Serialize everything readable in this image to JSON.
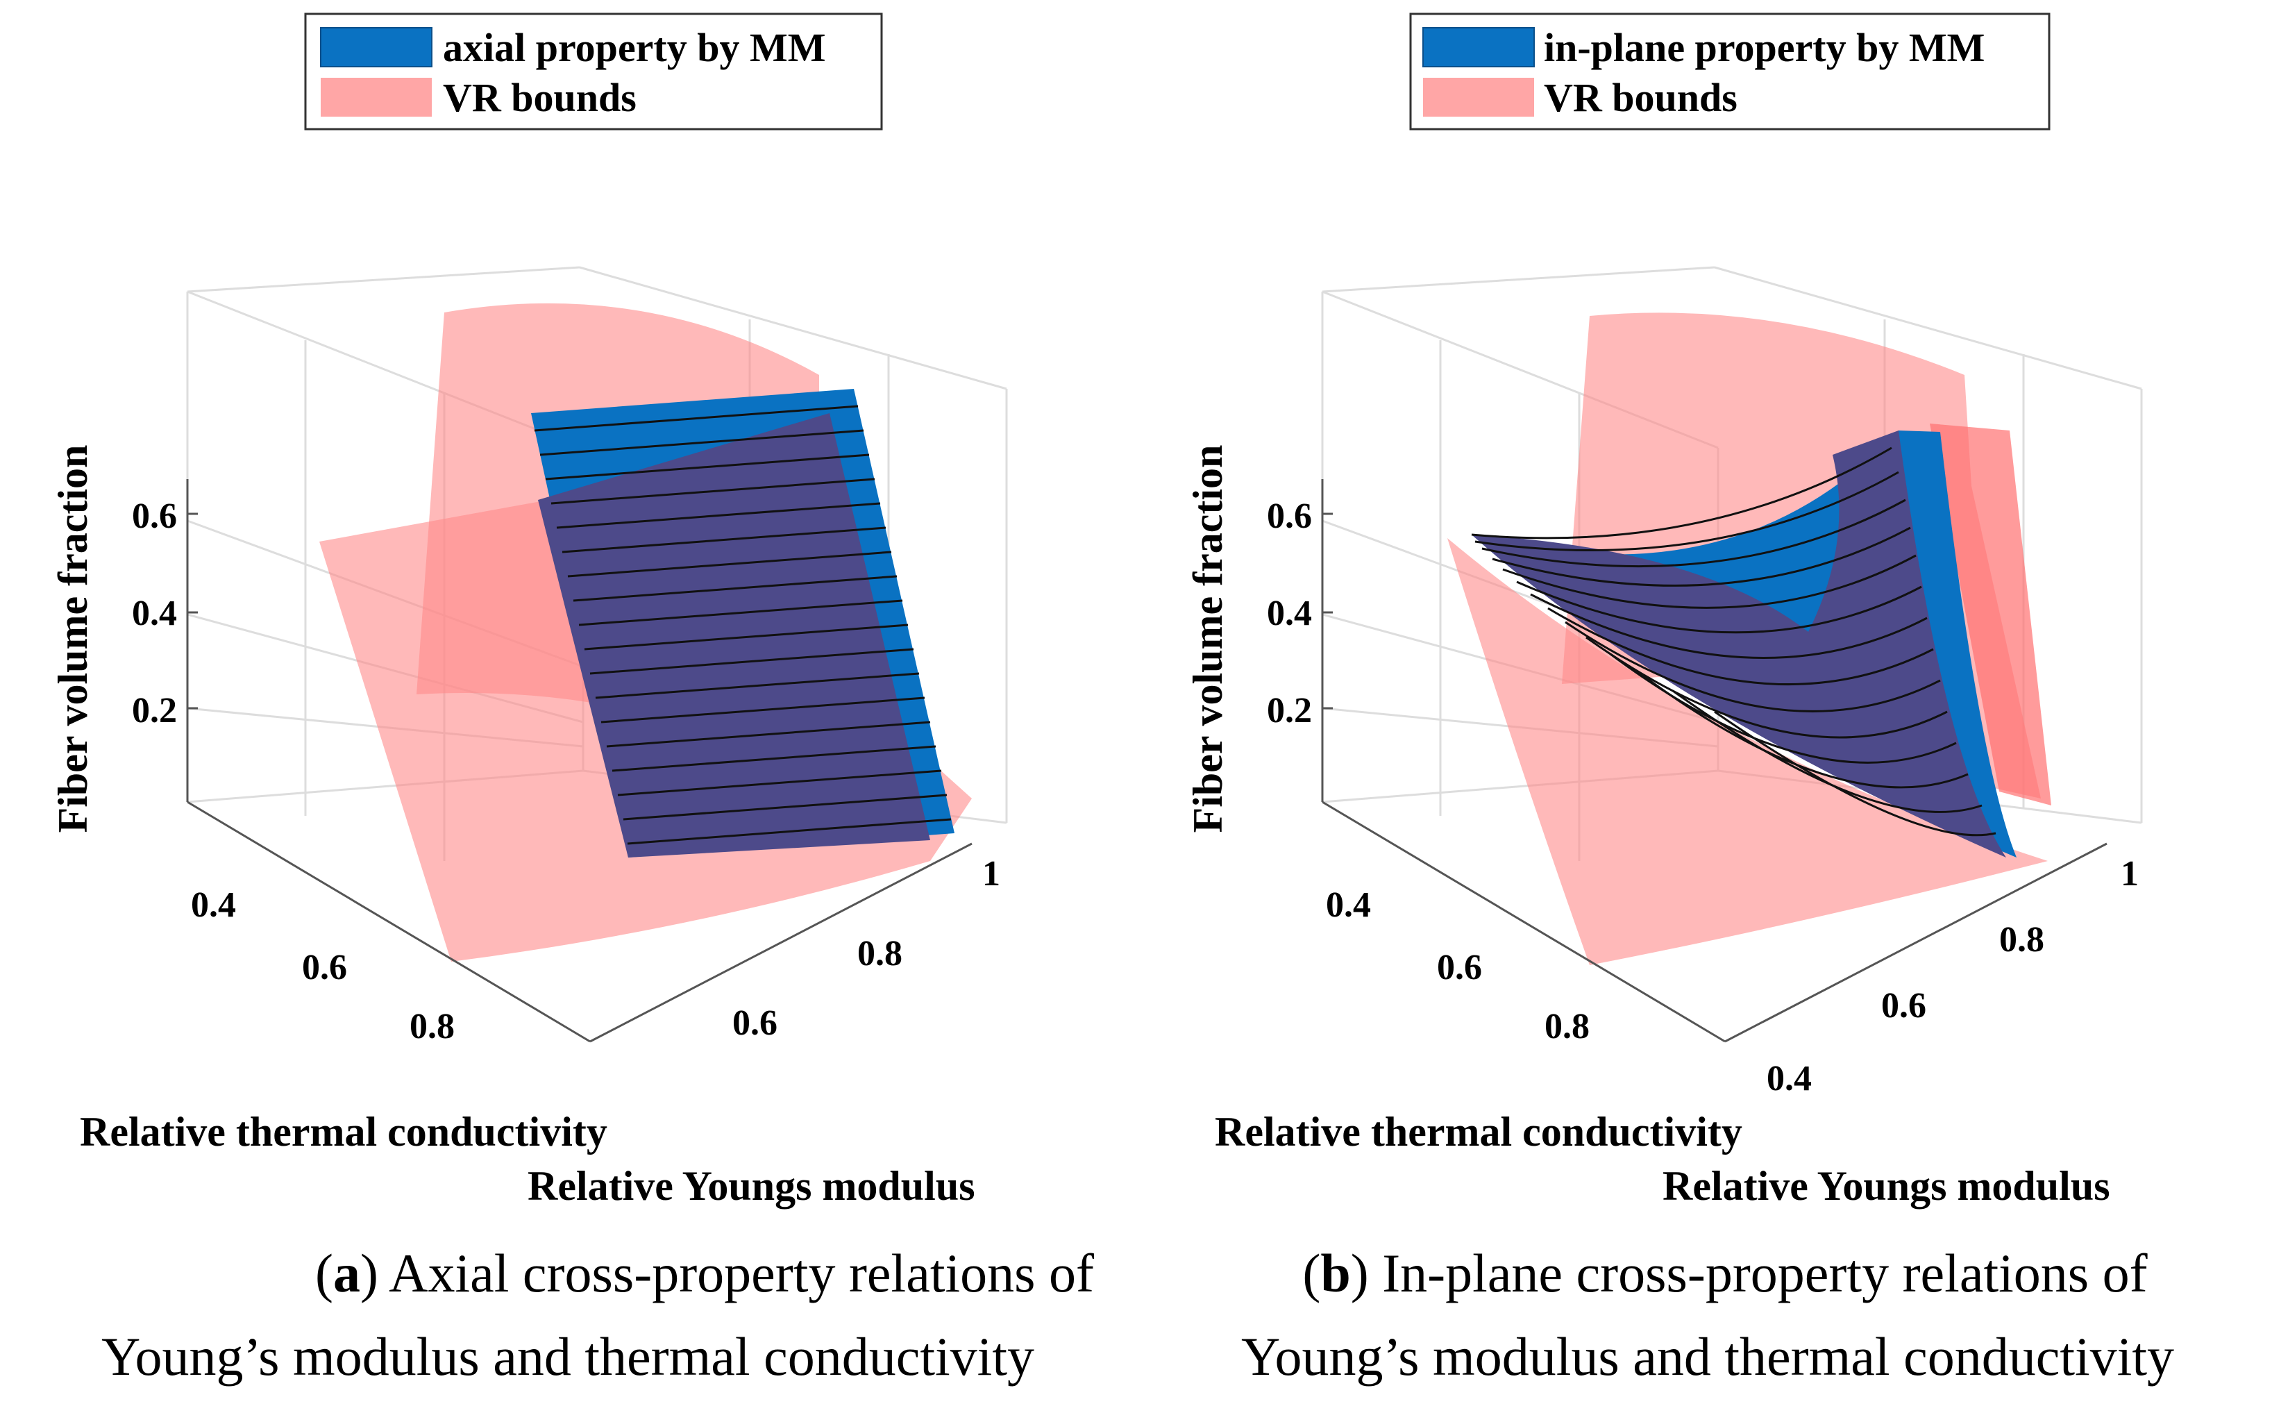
{
  "chart_data": [
    {
      "type": "surface3d",
      "panel": "a",
      "legend": [
        {
          "label": "axial property by MM",
          "color": "#0a72c2"
        },
        {
          "label": "VR bounds",
          "color": "#ffa6a6"
        }
      ],
      "zlabel": "Fiber volume fraction",
      "xlabel": "Relative thermal conductivity",
      "ylabel": "Relative Youngs modulus",
      "zticks": [
        "0.2",
        "0.4",
        "0.6"
      ],
      "xticks": [
        "0.4",
        "0.6",
        "0.8"
      ],
      "yticks": [
        "0.6",
        "0.8",
        "1"
      ],
      "caption_label": "a",
      "caption_line1": ") Axial cross-property relations of",
      "caption_line2": "Young’s modulus and thermal conductivity"
    },
    {
      "type": "surface3d",
      "panel": "b",
      "legend": [
        {
          "label": "in-plane property by MM",
          "color": "#0a72c2"
        },
        {
          "label": "VR bounds",
          "color": "#ffa6a6"
        }
      ],
      "zlabel": "Fiber volume fraction",
      "xlabel": "Relative thermal conductivity",
      "ylabel": "Relative Youngs modulus",
      "zticks": [
        "0.2",
        "0.4",
        "0.6"
      ],
      "xticks": [
        "0.4",
        "0.6",
        "0.8"
      ],
      "yticks": [
        "0.4",
        "0.6",
        "0.8",
        "1"
      ],
      "caption_label": "b",
      "caption_line1": ") In-plane cross-property relations of",
      "caption_line2": "Young’s modulus and thermal conductivity"
    }
  ],
  "colors": {
    "mm_surface": "#0a72c2",
    "vr_bounds": "#ffa6a6",
    "overlap": "#4d4a8a",
    "axis": "#555555",
    "grid": "#dddddd"
  }
}
